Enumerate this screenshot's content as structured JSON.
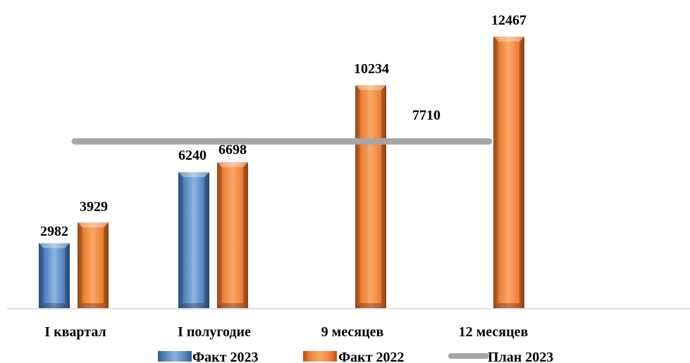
{
  "chart_data": {
    "type": "bar",
    "categories": [
      "I квартал",
      "I полугодие",
      "9 месяцев",
      "12 месяцев"
    ],
    "series": [
      {
        "name": "Факт 2023",
        "kind": "bar",
        "color": "#4F81BD",
        "values": [
          2982,
          6240,
          null,
          null
        ]
      },
      {
        "name": "Факт 2022",
        "kind": "bar",
        "color": "#ED7D31",
        "values": [
          3929,
          6698,
          10234,
          12467
        ]
      },
      {
        "name": "План 2023",
        "kind": "line",
        "color": "#A6A6A6",
        "value": 7710
      }
    ],
    "data_labels": {
      "bar_values": [
        [
          "2982",
          "6240",
          "",
          ""
        ],
        [
          "3929",
          "6698",
          "10234",
          "12467"
        ]
      ],
      "plan_value": "7710"
    },
    "ylim": [
      0,
      13500
    ],
    "grid": false,
    "legend_position": "bottom"
  }
}
